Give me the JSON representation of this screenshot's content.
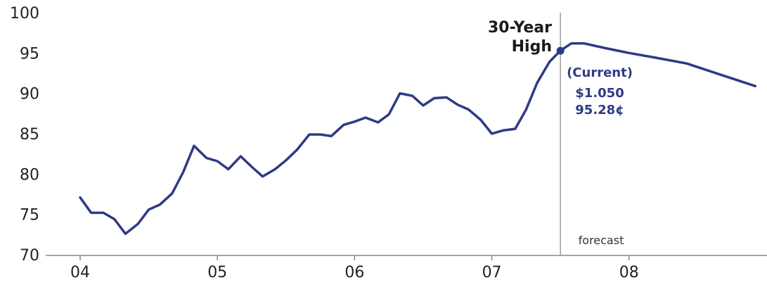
{
  "chart_data": {
    "type": "line",
    "title": "",
    "xlabel": "",
    "ylabel": "",
    "ylim": [
      70,
      100
    ],
    "xlim": [
      2004.0,
      2008.99
    ],
    "yticks": [
      70,
      75,
      80,
      85,
      90,
      95,
      100
    ],
    "xticks": [
      {
        "value": 2004,
        "label": "04"
      },
      {
        "value": 2005,
        "label": "05"
      },
      {
        "value": 2006,
        "label": "06"
      },
      {
        "value": 2007,
        "label": "07"
      },
      {
        "value": 2008,
        "label": "08"
      }
    ],
    "grid": false,
    "colors": {
      "line": "#2e3a87",
      "axis": "#888888",
      "divider": "#9a9a9a",
      "annotation": "#2e3a87"
    },
    "series": [
      {
        "x": [
          2004.0,
          2004.08,
          2004.17,
          2004.25,
          2004.33,
          2004.42,
          2004.5,
          2004.58,
          2004.67,
          2004.75,
          2004.83,
          2004.92,
          2005.0,
          2005.08,
          2005.17,
          2005.25,
          2005.33,
          2005.42,
          2005.5,
          2005.58,
          2005.67,
          2005.75,
          2005.83,
          2005.92,
          2006.0,
          2006.08,
          2006.17,
          2006.25,
          2006.33,
          2006.42,
          2006.5,
          2006.58,
          2006.67,
          2006.75,
          2006.83,
          2006.92,
          2007.0,
          2007.08,
          2007.17,
          2007.25,
          2007.33,
          2007.42,
          2007.5,
          2007.58,
          2007.67,
          2007.83,
          2008.0,
          2008.17,
          2008.42,
          2008.67,
          2008.92
        ],
        "values": [
          77.1,
          75.2,
          75.2,
          74.4,
          72.6,
          73.8,
          75.6,
          76.2,
          77.6,
          80.2,
          83.5,
          82.0,
          81.6,
          80.6,
          82.2,
          80.9,
          79.7,
          80.6,
          81.7,
          83.0,
          84.9,
          84.9,
          84.7,
          86.1,
          86.5,
          87.0,
          86.4,
          87.4,
          90.0,
          89.7,
          88.5,
          89.4,
          89.5,
          88.6,
          88.0,
          86.7,
          85.0,
          85.4,
          85.6,
          88.0,
          91.3,
          93.9,
          95.3,
          96.2,
          96.2,
          95.6,
          95.0,
          94.5,
          93.7,
          92.3,
          90.9
        ]
      }
    ],
    "forecast_start": 2007.5,
    "highlight": {
      "x": 2007.5,
      "y": 95.28
    },
    "annotations": {
      "high_line1": "30-Year",
      "high_line2": "High",
      "current_label": "(Current)",
      "current_price": "$1.050",
      "current_cents": "95.28¢",
      "forecast_label": "forecast"
    }
  }
}
